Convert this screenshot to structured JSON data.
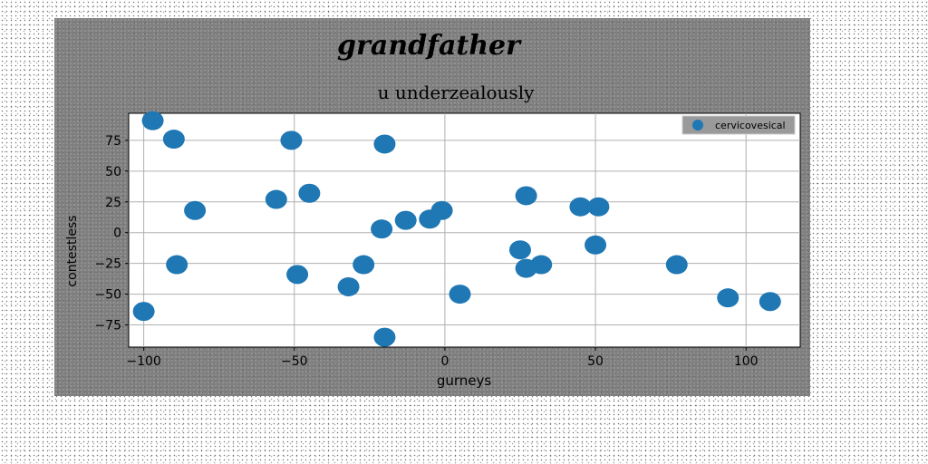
{
  "chart_data": {
    "type": "scatter",
    "title": "grandfather",
    "subtitle": "u underzealously",
    "xlabel": "gurneys",
    "ylabel": "contestless",
    "xlim": [
      -105,
      118
    ],
    "ylim": [
      -93,
      97
    ],
    "xticks": [
      -100,
      -50,
      0,
      50,
      100
    ],
    "yticks": [
      -75,
      -50,
      -25,
      0,
      25,
      50,
      75
    ],
    "xtick_labels": [
      "−100",
      "−50",
      "0",
      "50",
      "100"
    ],
    "ytick_labels": [
      "−75",
      "−50",
      "−25",
      "0",
      "25",
      "50",
      "75"
    ],
    "grid": true,
    "legend_position": "top-right",
    "marker_color": "#1f77b4",
    "series": [
      {
        "name": "cervicovesical",
        "points": [
          {
            "x": -97,
            "y": 91
          },
          {
            "x": -90,
            "y": 76
          },
          {
            "x": -51,
            "y": 75
          },
          {
            "x": -20,
            "y": 72
          },
          {
            "x": -83,
            "y": 18
          },
          {
            "x": -56,
            "y": 27
          },
          {
            "x": -45,
            "y": 32
          },
          {
            "x": -21,
            "y": 3
          },
          {
            "x": -13,
            "y": 10
          },
          {
            "x": -5,
            "y": 11
          },
          {
            "x": -1,
            "y": 18
          },
          {
            "x": 27,
            "y": 30
          },
          {
            "x": 45,
            "y": 21
          },
          {
            "x": 51,
            "y": 21
          },
          {
            "x": 50,
            "y": -10
          },
          {
            "x": 25,
            "y": -14
          },
          {
            "x": 27,
            "y": -29
          },
          {
            "x": 32,
            "y": -26
          },
          {
            "x": 77,
            "y": -26
          },
          {
            "x": -89,
            "y": -26
          },
          {
            "x": -27,
            "y": -26
          },
          {
            "x": -49,
            "y": -34
          },
          {
            "x": -32,
            "y": -44
          },
          {
            "x": 5,
            "y": -50
          },
          {
            "x": 94,
            "y": -53
          },
          {
            "x": 108,
            "y": -56
          },
          {
            "x": -100,
            "y": -64
          },
          {
            "x": -20,
            "y": -85
          }
        ]
      }
    ]
  }
}
